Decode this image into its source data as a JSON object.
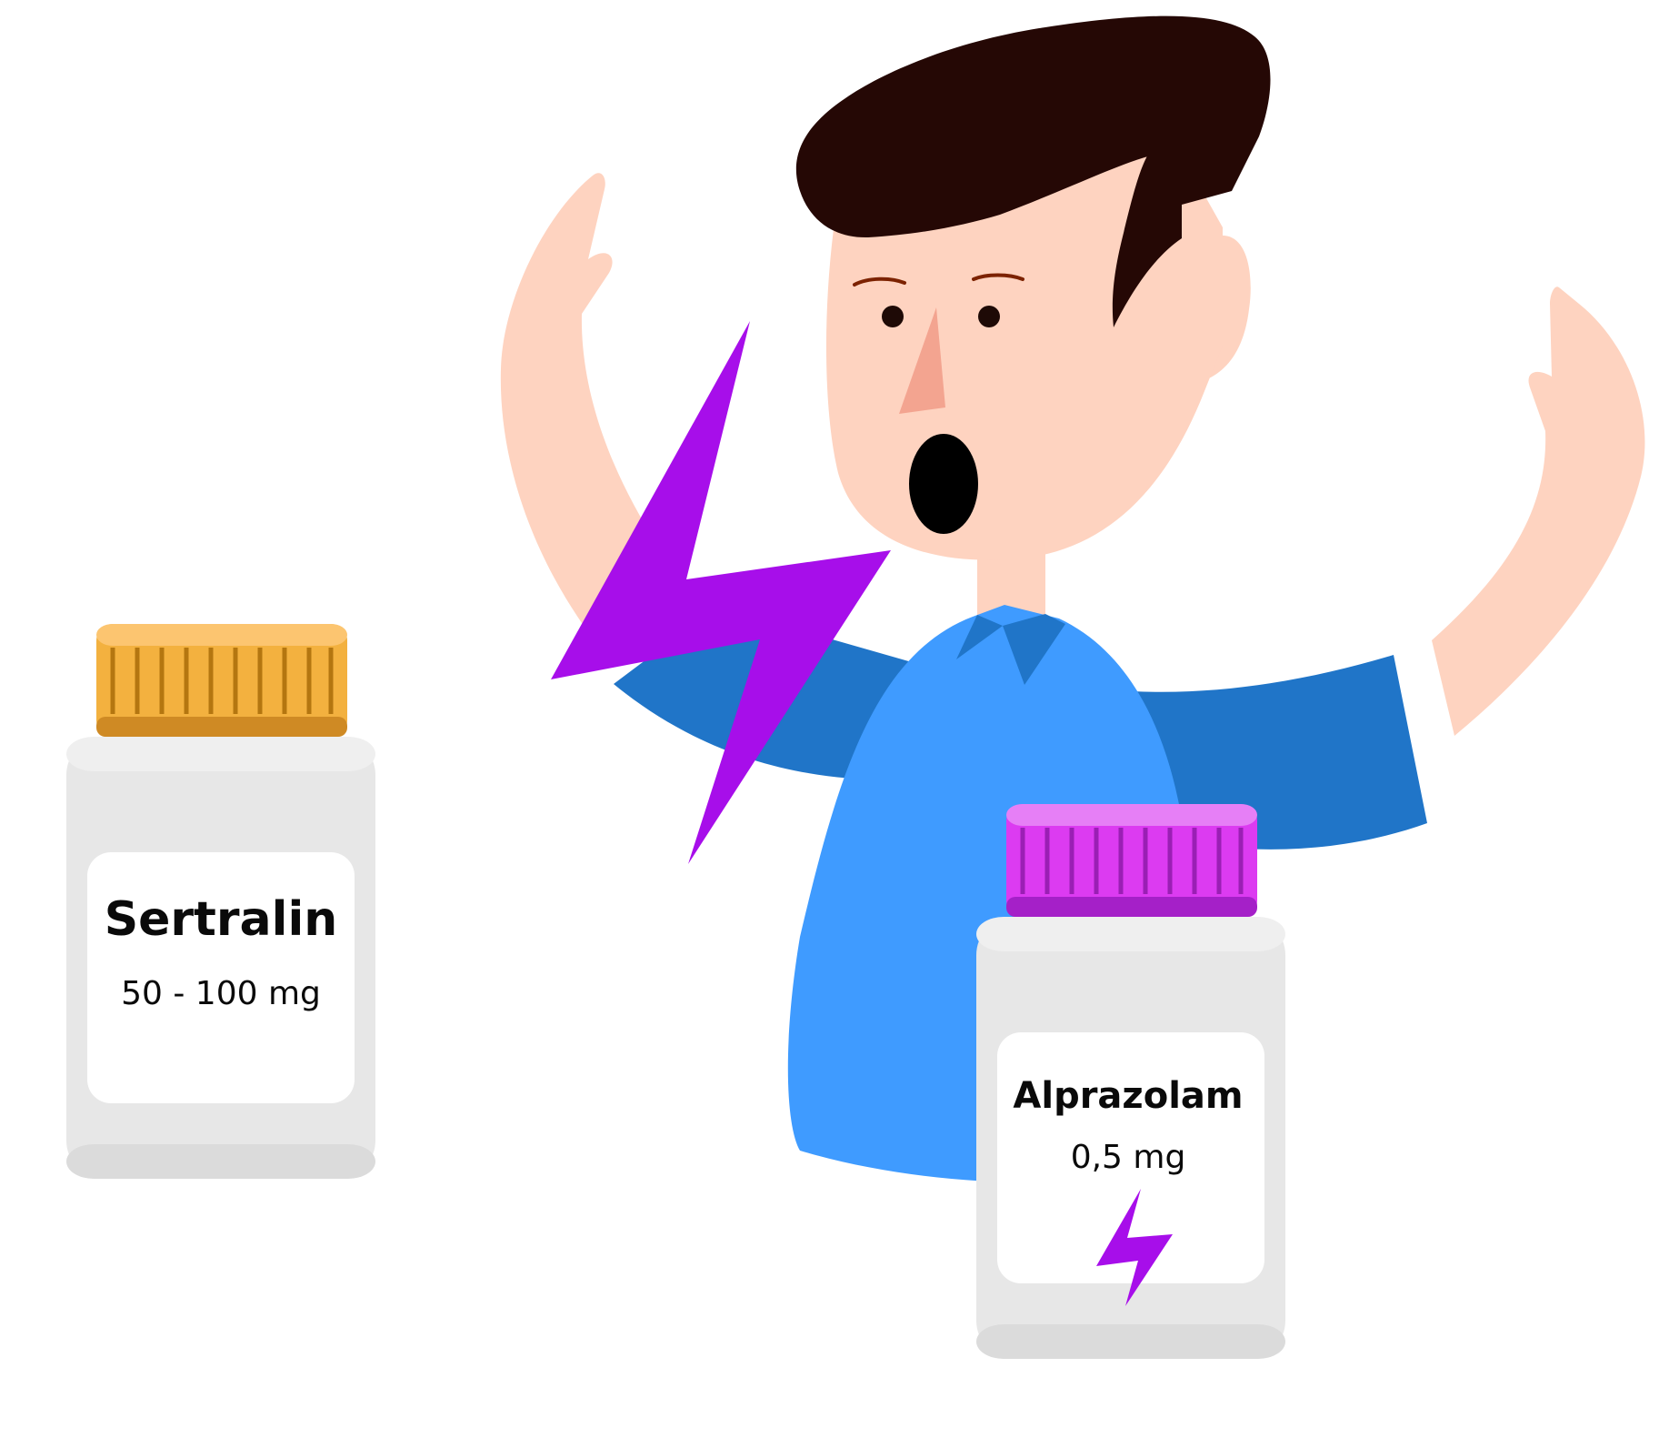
{
  "bottles": {
    "left": {
      "name": "Sertralin",
      "dose": "50 - 100 mg",
      "cap_color": "#f3b13f"
    },
    "right": {
      "name": "Alprazolam",
      "dose": "0,5 mg",
      "cap_color": "#dc3bf1"
    }
  },
  "colors": {
    "skin": "#fed3c0",
    "hair": "#250805",
    "shirt": "#3f9bff",
    "sleeve": "#2075c8",
    "lightning": "#a70eea",
    "bottle_body": "#e7e7e7",
    "label": "#ffffff"
  },
  "icons": [
    "lightning-bolt-icon",
    "small-lightning-bolt-icon"
  ]
}
